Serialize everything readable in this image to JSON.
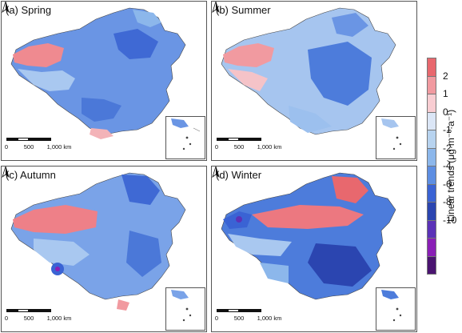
{
  "panels": [
    {
      "label": "(a) Spring"
    },
    {
      "label": "(b) Summer"
    },
    {
      "label": "(c) Autumn"
    },
    {
      "label": "(d) Winter"
    }
  ],
  "scale_labels": [
    "0",
    "500",
    "1,000 km"
  ],
  "legend": {
    "title": "Linear trends (μg·m⁻³·a⁻¹)",
    "ticks": [
      "2",
      "1",
      "0",
      "-1",
      "-2",
      "-4",
      "-6",
      "-8",
      "-10"
    ],
    "colors": [
      "#e8686e",
      "#f19aa0",
      "#f8cdd2",
      "#dbe6f6",
      "#b7d3ef",
      "#8cb7eb",
      "#5d8ee2",
      "#3a63d4",
      "#2b45b0",
      "#5b32b8",
      "#8a1fb6",
      "#4a1470"
    ]
  }
}
